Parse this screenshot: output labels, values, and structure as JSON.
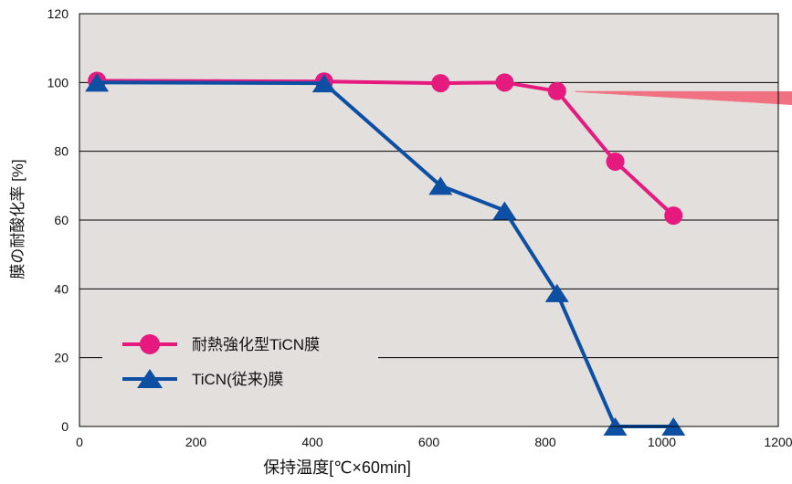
{
  "chart_data": {
    "type": "line",
    "xlabel": "保持温度[℃×60min]",
    "ylabel": "膜の耐酸化率 [%]",
    "xlim": [
      0,
      1200
    ],
    "ylim": [
      0,
      120
    ],
    "x_ticks": [
      "0",
      "200",
      "400",
      "600",
      "800",
      "1000",
      "1200"
    ],
    "y_ticks": [
      "0",
      "20",
      "40",
      "60",
      "80",
      "100",
      "120"
    ],
    "grid": "horizontal",
    "legend_position": "bottom-left",
    "background_color": "#e3dfdd",
    "series": [
      {
        "name": "耐熱強化型TiCN膜",
        "marker": "circle",
        "color": "#e6197f",
        "x": [
          30,
          420,
          620,
          730,
          820,
          920,
          1020
        ],
        "y": [
          100.5,
          100.3,
          99.8,
          100.0,
          97.5,
          77.0,
          61.3
        ]
      },
      {
        "name": "TiCN(従来)膜",
        "marker": "triangle",
        "color": "#0d4fa3",
        "x": [
          30,
          420,
          620,
          730,
          820,
          920,
          1020
        ],
        "y": [
          100.0,
          99.8,
          70.0,
          62.8,
          38.8,
          0,
          0
        ]
      }
    ],
    "annotation_color": "#f07181"
  }
}
